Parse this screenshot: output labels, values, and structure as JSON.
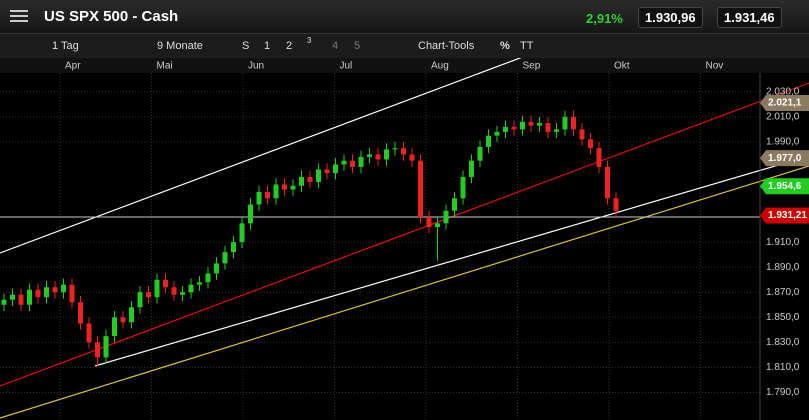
{
  "header": {
    "title": "US SPX 500 - Cash",
    "change": "2,91%",
    "bid": "1.930,96",
    "ask": "1.931,46"
  },
  "toolbar": {
    "interval": "1 Tag",
    "range": "9 Monate",
    "buttons": [
      "S",
      "1",
      "2",
      "3",
      "4",
      "5"
    ],
    "tools_label": "Chart-Tools",
    "percent": "%",
    "text_tool": "TT"
  },
  "chart_data": {
    "type": "candlestick",
    "month_labels": [
      "Apr",
      "Mai",
      "Jun",
      "Jul",
      "Aug",
      "Sep",
      "Okt",
      "Nov"
    ],
    "up_color": "#22cc22",
    "down_color": "#ee2222",
    "ylim": [
      1768,
      2045
    ],
    "yticks": [
      {
        "value": 2030,
        "label": "2.030,0"
      },
      {
        "value": 2010,
        "label": "2.010,0"
      },
      {
        "value": 1990,
        "label": "1.990,0"
      },
      {
        "value": 1910,
        "label": "1.910,0"
      },
      {
        "value": 1890,
        "label": "1.890,0"
      },
      {
        "value": 1870,
        "label": "1.870,0"
      },
      {
        "value": 1850,
        "label": "1.850,0"
      },
      {
        "value": 1830,
        "label": "1.830,0"
      },
      {
        "value": 1810,
        "label": "1.810,0"
      },
      {
        "value": 1790,
        "label": "1.790,0"
      }
    ],
    "grid": true,
    "price_markers": [
      {
        "value": 2021.1,
        "label": "2.021,1",
        "color": "#8a7a60"
      },
      {
        "value": 1977.0,
        "label": "1.977,0",
        "color": "#8a7a60"
      },
      {
        "value": 1954.6,
        "label": "1.954,6",
        "color": "#22cc22"
      },
      {
        "value": 1931.21,
        "label": "1.931,21",
        "color": "#cc0000"
      }
    ],
    "open": [
      1860,
      1864,
      1868,
      1860,
      1872,
      1866,
      1874,
      1870,
      1876,
      1862,
      1845,
      1830,
      1818,
      1835,
      1850,
      1846,
      1858,
      1870,
      1866,
      1880,
      1874,
      1868,
      1870,
      1876,
      1878,
      1885,
      1893,
      1902,
      1910,
      1925,
      1940,
      1950,
      1945,
      1956,
      1952,
      1955,
      1962,
      1958,
      1968,
      1965,
      1972,
      1975,
      1970,
      1978,
      1980,
      1976,
      1984,
      1985,
      1980,
      1975,
      1930,
      1922,
      1925,
      1935,
      1945,
      1962,
      1975,
      1986,
      1995,
      1998,
      2002,
      2000,
      2006,
      2003,
      2005,
      1998,
      2000,
      2010,
      2000,
      1992,
      1985,
      1970,
      1945
    ],
    "high": [
      1869,
      1873,
      1873,
      1877,
      1877,
      1879,
      1879,
      1881,
      1881,
      1867,
      1850,
      1835,
      1840,
      1855,
      1855,
      1863,
      1875,
      1875,
      1885,
      1885,
      1879,
      1875,
      1881,
      1883,
      1890,
      1898,
      1907,
      1915,
      1930,
      1945,
      1955,
      1955,
      1961,
      1961,
      1960,
      1967,
      1967,
      1973,
      1973,
      1977,
      1980,
      1980,
      1983,
      1985,
      1985,
      1989,
      1990,
      1990,
      1985,
      1980,
      1935,
      1930,
      1940,
      1950,
      1967,
      1980,
      1991,
      2000,
      2003,
      2007,
      2007,
      2011,
      2011,
      2010,
      2010,
      2005,
      2015,
      2015,
      2005,
      1997,
      1990,
      1975,
      1950
    ],
    "low": [
      1855,
      1859,
      1855,
      1855,
      1861,
      1861,
      1865,
      1865,
      1857,
      1840,
      1825,
      1811,
      1813,
      1830,
      1841,
      1841,
      1853,
      1861,
      1861,
      1869,
      1863,
      1863,
      1865,
      1871,
      1873,
      1880,
      1888,
      1897,
      1905,
      1920,
      1935,
      1940,
      1940,
      1947,
      1947,
      1950,
      1953,
      1953,
      1960,
      1960,
      1967,
      1965,
      1965,
      1973,
      1971,
      1971,
      1979,
      1975,
      1970,
      1925,
      1917,
      1895,
      1920,
      1930,
      1940,
      1957,
      1970,
      1981,
      1990,
      1993,
      1995,
      1995,
      1998,
      1998,
      1993,
      1993,
      1995,
      1995,
      1987,
      1980,
      1965,
      1940,
      1930
    ],
    "close": [
      1864,
      1868,
      1860,
      1872,
      1866,
      1874,
      1870,
      1876,
      1862,
      1845,
      1830,
      1818,
      1835,
      1850,
      1846,
      1858,
      1870,
      1866,
      1880,
      1874,
      1868,
      1870,
      1876,
      1878,
      1885,
      1893,
      1902,
      1910,
      1925,
      1940,
      1950,
      1945,
      1956,
      1952,
      1955,
      1962,
      1958,
      1968,
      1965,
      1972,
      1975,
      1970,
      1978,
      1980,
      1976,
      1984,
      1985,
      1980,
      1975,
      1930,
      1922,
      1925,
      1935,
      1945,
      1962,
      1975,
      1986,
      1995,
      1998,
      2002,
      2000,
      2006,
      2003,
      2005,
      1998,
      2000,
      2010,
      2000,
      1992,
      1985,
      1970,
      1945,
      1935
    ]
  }
}
